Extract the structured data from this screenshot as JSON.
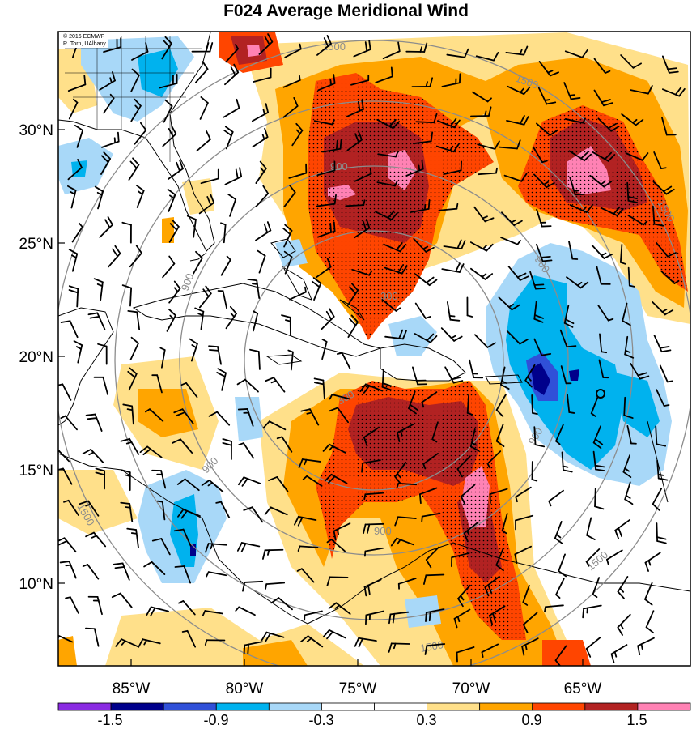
{
  "title": "F024 Average Meridional Wind",
  "credit": {
    "line1": "© 2016 ECMWF",
    "line2": "R. Torn, UAlbany"
  },
  "lat_labels": [
    "30°N",
    "25°N",
    "20°N",
    "15°N",
    "10°N"
  ],
  "lon_labels": [
    "85°W",
    "80°W",
    "75°W",
    "70°W",
    "65°W"
  ],
  "colorbar": {
    "colors": [
      "#8a2be2",
      "#00008b",
      "#3050d8",
      "#00b2ee",
      "#a8d8f8",
      "#ffffff",
      "#ffffff",
      "#ffe08a",
      "#ffa500",
      "#ff4500",
      "#b22222",
      "#ff82b4"
    ],
    "labels": [
      "-1.5",
      "-0.9",
      "-0.3",
      "0.3",
      "0.9",
      "1.5"
    ]
  },
  "contour_labels": [
    "1500",
    "1500",
    "1500",
    "900",
    "900",
    "900",
    "300",
    "300",
    "900",
    "900",
    "900",
    "1500",
    "1500",
    "1500"
  ],
  "colors": {
    "pink": "#ff82b4",
    "darkred": "#b22222",
    "red": "#ff4500",
    "orange": "#ffa500",
    "yellow": "#ffe08a",
    "lightblue": "#a8d8f8",
    "blue": "#00b2ee",
    "darkblue": "#00008b",
    "ring": "#8c8c8c"
  }
}
